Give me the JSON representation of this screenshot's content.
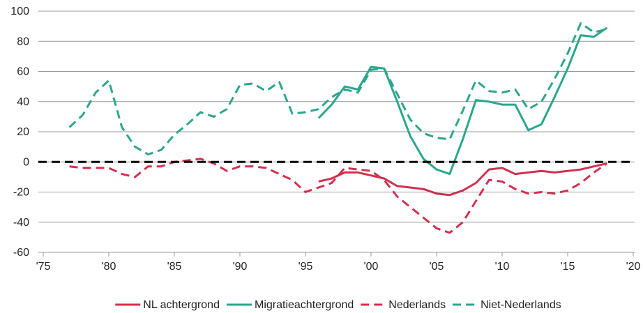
{
  "chart_data": {
    "type": "line",
    "x": [
      1977,
      1978,
      1979,
      1980,
      1981,
      1982,
      1983,
      1984,
      1985,
      1986,
      1987,
      1988,
      1989,
      1990,
      1991,
      1992,
      1993,
      1994,
      1995,
      1996,
      1997,
      1998,
      1999,
      2000,
      2001,
      2002,
      2003,
      2004,
      2005,
      2006,
      2007,
      2008,
      2009,
      2010,
      2011,
      2012,
      2013,
      2014,
      2015,
      2016,
      2017,
      2018
    ],
    "series": [
      {
        "name": "NL achtergrond",
        "color": "#d2304f",
        "dashed": false,
        "values": [
          null,
          null,
          null,
          null,
          null,
          null,
          null,
          null,
          null,
          null,
          null,
          null,
          null,
          null,
          null,
          null,
          null,
          null,
          null,
          -13,
          -11,
          -7,
          -7,
          -9,
          -11,
          -16,
          -17,
          -18,
          -21,
          -22,
          -19,
          -14,
          -5,
          -4,
          -8,
          -7,
          -6,
          -7,
          -6,
          -5,
          -3,
          -1
        ]
      },
      {
        "name": "Migratieachtergrond",
        "color": "#2ba68e",
        "dashed": false,
        "values": [
          null,
          null,
          null,
          null,
          null,
          null,
          null,
          null,
          null,
          null,
          null,
          null,
          null,
          null,
          null,
          null,
          null,
          null,
          null,
          29,
          38,
          50,
          48,
          63,
          62,
          40,
          17,
          2,
          -5,
          -8,
          15,
          41,
          40,
          38,
          38,
          21,
          25,
          43,
          62,
          84,
          83,
          89
        ]
      },
      {
        "name": "Nederlands",
        "color": "#d2304f",
        "dashed": true,
        "values": [
          -3,
          -4,
          -4,
          -4,
          -8,
          -10,
          -3,
          -3,
          0,
          1,
          2,
          -1,
          -6,
          -3,
          -3,
          -4,
          -8,
          -12,
          -20,
          -17,
          -14,
          -4,
          -5,
          -6,
          -12,
          -23,
          -30,
          -37,
          -44,
          -47,
          -40,
          -26,
          -12,
          -13,
          -18,
          -21,
          -20,
          -21,
          -19,
          -14,
          -7,
          -1
        ]
      },
      {
        "name": "Niet-Nederlands",
        "color": "#2ba68e",
        "dashed": true,
        "values": [
          23,
          31,
          46,
          54,
          23,
          10,
          5,
          8,
          18,
          25,
          33,
          30,
          35,
          51,
          52,
          47,
          53,
          32,
          33,
          35,
          43,
          48,
          46,
          61,
          62,
          45,
          28,
          19,
          16,
          15,
          34,
          54,
          47,
          46,
          48,
          35,
          40,
          55,
          72,
          92,
          86,
          88
        ]
      }
    ],
    "xlim": [
      1975,
      2020
    ],
    "xticks": [
      {
        "value": 1975,
        "label": "'75"
      },
      {
        "value": 1980,
        "label": "'80"
      },
      {
        "value": 1985,
        "label": "'85"
      },
      {
        "value": 1990,
        "label": "'90"
      },
      {
        "value": 1995,
        "label": "'95"
      },
      {
        "value": 2000,
        "label": "'00"
      },
      {
        "value": 2005,
        "label": "'05"
      },
      {
        "value": 2010,
        "label": "'10"
      },
      {
        "value": 2015,
        "label": "'15"
      },
      {
        "value": 2020,
        "label": "'20"
      }
    ],
    "ylim": [
      -60,
      100
    ],
    "yticks": [
      -60,
      -40,
      -20,
      0,
      20,
      40,
      60,
      80,
      100
    ],
    "grid": true,
    "zero_line": true,
    "legend": "bottom"
  }
}
